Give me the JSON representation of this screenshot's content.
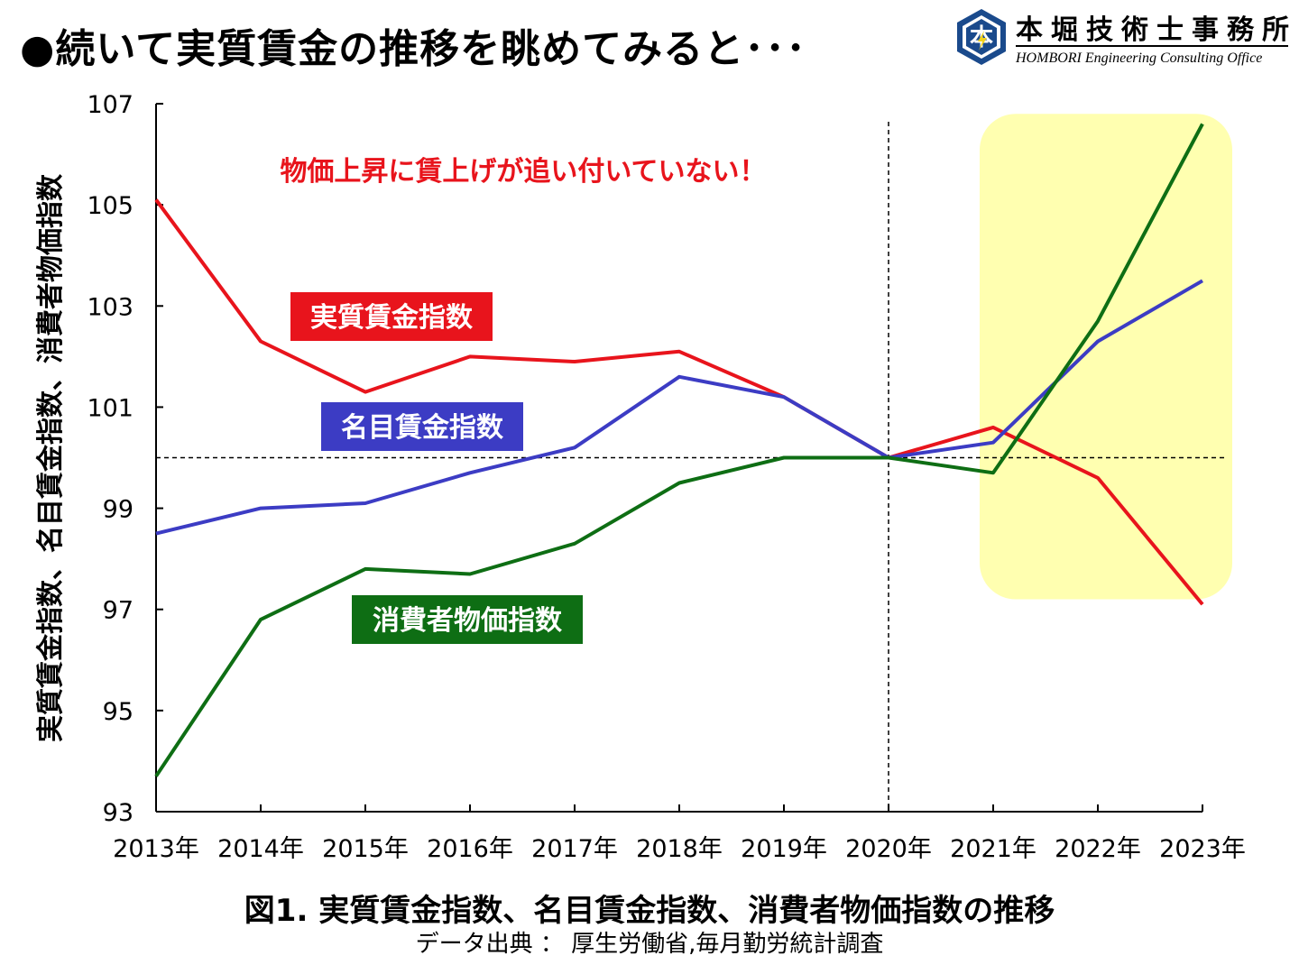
{
  "page": {
    "title": "●続いて実質賃金の推移を眺めてみると･･･",
    "caption": "図1. 実質賃金指数、名目賃金指数、消費者物価指数の推移",
    "source": "データ出典 ： 厚生労働省,毎月勤労統計調査"
  },
  "logo": {
    "name": "本堀技術士事務所",
    "subtitle": "HOMBORI Engineering Consulting Office",
    "mark_letter": "本"
  },
  "chart_data": {
    "type": "line",
    "title": "",
    "xlabel": "",
    "ylabel": "実質賃金指数、名目賃金指数、消費者物価指数",
    "x": [
      "2013年",
      "2014年",
      "2015年",
      "2016年",
      "2017年",
      "2018年",
      "2019年",
      "2020年",
      "2021年",
      "2022年",
      "2023年"
    ],
    "ylim": [
      93,
      107
    ],
    "yticks": [
      93,
      95,
      97,
      99,
      101,
      103,
      105,
      107
    ],
    "reference_y": 100,
    "reference_x": "2020年",
    "highlight_x": [
      "2021年",
      "2023年"
    ],
    "highlight_color": "#ffffb0",
    "annotation": "物価上昇に賃上げが追い付いていない！",
    "annotation_color": "#e8141c",
    "series": [
      {
        "name": "実質賃金指数",
        "color": "#e8141c",
        "values": [
          105.1,
          102.3,
          101.3,
          102.0,
          101.9,
          102.1,
          101.2,
          100.0,
          100.6,
          99.6,
          97.1
        ]
      },
      {
        "name": "名目賃金指数",
        "color": "#3c3cc4",
        "values": [
          98.5,
          99.0,
          99.1,
          99.7,
          100.2,
          101.6,
          101.2,
          100.0,
          100.3,
          102.3,
          103.5
        ]
      },
      {
        "name": "消費者物価指数",
        "color": "#0e6e14",
        "values": [
          93.7,
          96.8,
          97.8,
          97.7,
          98.3,
          99.5,
          100.0,
          100.0,
          99.7,
          102.7,
          106.6
        ]
      }
    ],
    "grid": false,
    "legend": "inline-labels"
  }
}
